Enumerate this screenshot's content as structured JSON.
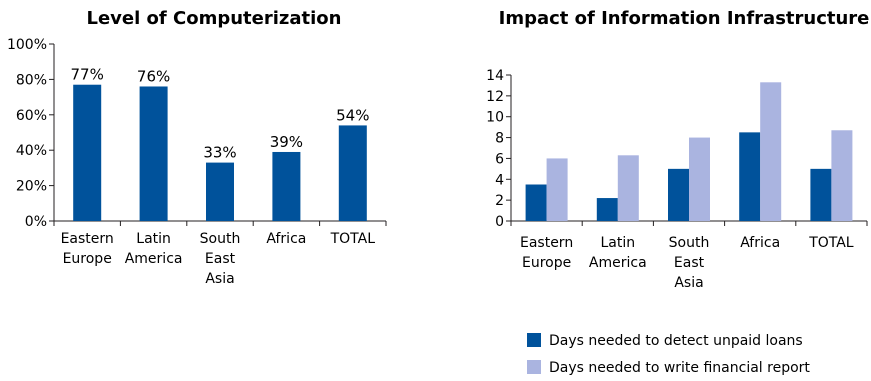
{
  "chart_data": [
    {
      "type": "bar",
      "title": "Level of Computerization",
      "categories": [
        [
          "Eastern",
          "Europe"
        ],
        [
          "Latin",
          "America"
        ],
        [
          "South",
          "East",
          "Asia"
        ],
        [
          "Africa"
        ],
        [
          "TOTAL"
        ]
      ],
      "values": [
        77,
        76,
        33,
        39,
        54
      ],
      "data_labels": [
        "77%",
        "76%",
        "33%",
        "39%",
        "54%"
      ],
      "ylim": [
        0,
        100
      ],
      "yticks": [
        0,
        20,
        40,
        60,
        80,
        100
      ],
      "ytick_labels": [
        "0%",
        "20%",
        "40%",
        "60%",
        "80%",
        "100%"
      ],
      "color": "#00529b",
      "grid": false
    },
    {
      "type": "bar",
      "title": "Impact of Information Infrastructure",
      "categories": [
        [
          "Eastern",
          "Europe"
        ],
        [
          "Latin",
          "America"
        ],
        [
          "South",
          "East",
          "Asia"
        ],
        [
          "Africa"
        ],
        [
          "TOTAL"
        ]
      ],
      "series": [
        {
          "name": "Days needed to detect unpaid loans",
          "values": [
            3.5,
            2.2,
            5.0,
            8.5,
            5.0
          ],
          "color": "#00529b"
        },
        {
          "name": "Days needed to write financial report",
          "values": [
            6.0,
            6.3,
            8.0,
            13.3,
            8.7
          ],
          "color": "#aab4e0"
        }
      ],
      "ylim": [
        0,
        14
      ],
      "yticks": [
        0,
        2,
        4,
        6,
        8,
        10,
        12,
        14
      ],
      "ytick_labels": [
        "0",
        "2",
        "4",
        "6",
        "8",
        "10",
        "12",
        "14"
      ],
      "legend_position": "bottom-right",
      "grid": false
    }
  ]
}
